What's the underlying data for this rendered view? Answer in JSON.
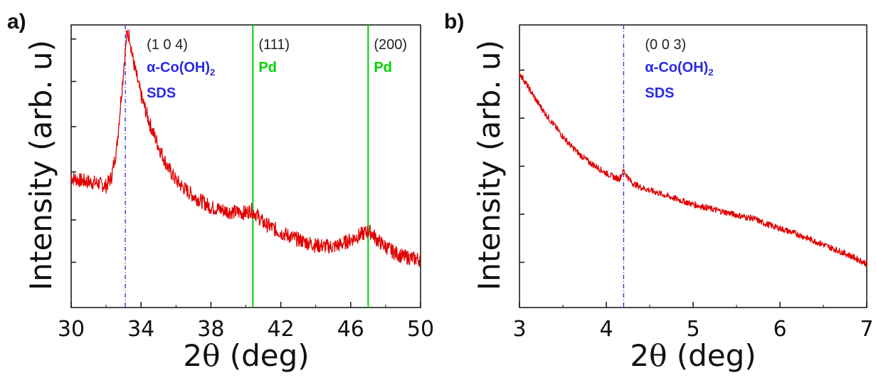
{
  "colors": {
    "pattern": "#e00000",
    "co_oh2_ref": "#2a2ae0",
    "pd_ref": "#00d000",
    "axis": "#111111"
  },
  "chart_data": [
    {
      "type": "line",
      "panel": "a)",
      "xlabel_main": "2",
      "xlabel_theta": "θ",
      "xlabel_unit": " (deg)",
      "ylabel": "Intensity (arb. u)",
      "xlim": [
        30,
        50
      ],
      "ylim": [
        0,
        100
      ],
      "xticks": [
        30,
        34,
        38,
        42,
        46,
        50
      ],
      "xtick_labels": [
        "30",
        "34",
        "38",
        "42",
        "46",
        "50"
      ],
      "yticks": [
        16,
        31,
        48,
        64,
        80,
        95
      ],
      "y_tick_labels_shown": false,
      "grid": false,
      "series": [
        {
          "color": "#e00000",
          "x": [
            30,
            30.5,
            31,
            31.5,
            32,
            32.3,
            32.6,
            32.8,
            33.0,
            33.1,
            33.2,
            33.35,
            33.5,
            33.7,
            34.0,
            34.5,
            35.0,
            35.5,
            36.0,
            36.5,
            37.0,
            37.5,
            38.0,
            39.0,
            40.0,
            40.3,
            40.6,
            41.0,
            42.0,
            43.0,
            44.0,
            45.0,
            45.5,
            46.0,
            46.5,
            47.0,
            47.2,
            47.5,
            48.0,
            48.5,
            49.0,
            49.5,
            50.0
          ],
          "y": [
            46,
            45,
            44.5,
            44,
            43,
            46,
            56,
            70,
            84,
            91,
            97,
            96,
            89,
            83,
            75,
            65,
            57,
            50,
            45,
            42,
            39.5,
            37.5,
            35.5,
            34,
            33.5,
            34.5,
            33,
            30,
            26.5,
            24,
            22,
            21.5,
            22.5,
            24,
            25.5,
            27,
            26.5,
            24,
            21.5,
            19.5,
            18,
            17.5,
            17
          ]
        }
      ],
      "annotations": [
        {
          "x": 33.1,
          "color": "#2a2ae0",
          "style": "dashdot",
          "index": "(1 0 4)",
          "phase": "α-Co(OH)",
          "phase_sub": "2",
          "extra": "SDS"
        },
        {
          "x": 40.4,
          "color": "#00d000",
          "style": "solid",
          "index": "(111)",
          "phase": "Pd"
        },
        {
          "x": 47.0,
          "color": "#00d000",
          "style": "solid",
          "index": "(200)",
          "phase": "Pd"
        }
      ]
    },
    {
      "type": "line",
      "panel": "b)",
      "xlabel_main": "2",
      "xlabel_theta": "θ",
      "xlabel_unit": " (deg)",
      "ylabel": "Intensity (arb. u)",
      "xlim": [
        3,
        7
      ],
      "ylim": [
        0,
        100
      ],
      "xticks": [
        3,
        4,
        5,
        6,
        7
      ],
      "xtick_labels": [
        "3",
        "4",
        "5",
        "6",
        "7"
      ],
      "yticks": [
        16,
        33,
        50,
        67,
        84
      ],
      "y_tick_labels_shown": false,
      "grid": false,
      "series": [
        {
          "color": "#e00000",
          "x": [
            3.0,
            3.1,
            3.2,
            3.3,
            3.4,
            3.5,
            3.6,
            3.7,
            3.8,
            3.9,
            4.0,
            4.1,
            4.15,
            4.2,
            4.25,
            4.3,
            4.4,
            4.5,
            4.6,
            4.8,
            5.0,
            5.2,
            5.4,
            5.6,
            5.7,
            5.8,
            6.0,
            6.2,
            6.4,
            6.6,
            6.8,
            7.0
          ],
          "y": [
            83,
            78,
            73,
            68.5,
            64.5,
            60.5,
            57,
            54,
            51.5,
            49.5,
            47.5,
            46,
            45.5,
            48.5,
            46,
            44,
            42.5,
            41.5,
            40.5,
            38.5,
            36.5,
            35,
            33.5,
            32,
            31.5,
            30,
            28,
            26,
            23.5,
            21,
            18.5,
            15.5
          ]
        }
      ],
      "annotations": [
        {
          "x": 4.2,
          "color": "#2a2ae0",
          "style": "dashdot",
          "index": "(0 0 3)",
          "phase": "α-Co(OH)",
          "phase_sub": "2",
          "extra": "SDS"
        }
      ]
    }
  ]
}
